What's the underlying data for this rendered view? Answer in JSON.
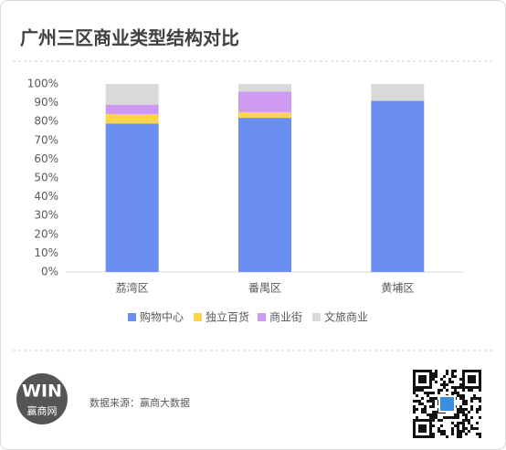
{
  "header": {
    "title": "广州三区商业类型结构对比"
  },
  "chart_data": {
    "type": "stacked-bar",
    "categories": [
      "荔湾区",
      "番禺区",
      "黄埔区"
    ],
    "series": [
      {
        "name": "购物中心",
        "color": "#6b8ff0",
        "values": [
          79,
          82,
          91
        ]
      },
      {
        "name": "独立百货",
        "color": "#fcd54a",
        "values": [
          5,
          3,
          0
        ]
      },
      {
        "name": "商业街",
        "color": "#cd9af0",
        "values": [
          5,
          11,
          0
        ]
      },
      {
        "name": "文旅商业",
        "color": "#d9d9d9",
        "values": [
          11,
          4,
          9
        ]
      }
    ],
    "ylim": [
      0,
      100
    ],
    "yticks": [
      {
        "value": 0,
        "label": "0%"
      },
      {
        "value": 10,
        "label": "10%"
      },
      {
        "value": 20,
        "label": "20%"
      },
      {
        "value": 30,
        "label": "30%"
      },
      {
        "value": 40,
        "label": "40%"
      },
      {
        "value": 50,
        "label": "50%"
      },
      {
        "value": 60,
        "label": "60%"
      },
      {
        "value": 70,
        "label": "70%"
      },
      {
        "value": 80,
        "label": "80%"
      },
      {
        "value": 90,
        "label": "90%"
      },
      {
        "value": 100,
        "label": "100%"
      }
    ],
    "legend": "bottom"
  },
  "footer": {
    "logo_mark": "WIN",
    "logo_text": "赢商网",
    "source": "数据来源：赢商大数据"
  }
}
